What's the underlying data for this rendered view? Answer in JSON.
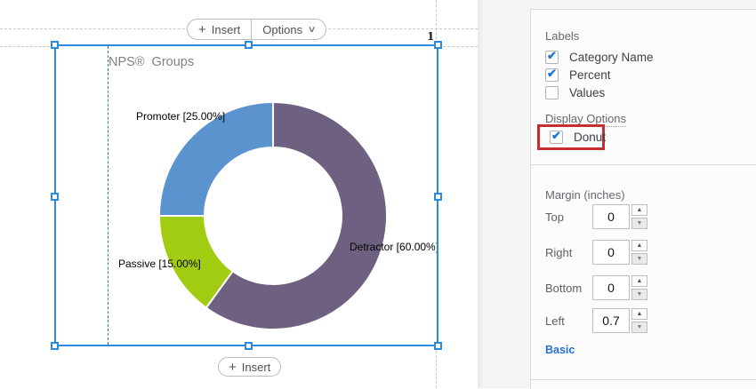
{
  "page": {
    "number": "1"
  },
  "toolbar": {
    "insert_label": "Insert",
    "options_label": "Options"
  },
  "bottom_toolbar": {
    "insert_label": "Insert"
  },
  "chart_data": {
    "type": "pie",
    "donut": true,
    "title": "NPS®  Groups",
    "categories": [
      "Detractor",
      "Passive",
      "Promoter"
    ],
    "values": [
      60,
      15,
      25
    ],
    "labels": [
      "Detractor [60.00%]",
      "Passive [15.00%]",
      "Promoter [25.00%]"
    ],
    "colors": [
      "#6e6080",
      "#a2cc12",
      "#5b93ce"
    ],
    "start_angle_deg": 0,
    "direction": "clockwise",
    "legend": "off"
  },
  "panel": {
    "labels_section": {
      "title": "Labels",
      "options": [
        {
          "label": "Category Name",
          "checked": true
        },
        {
          "label": "Percent",
          "checked": true
        },
        {
          "label": "Values",
          "checked": false
        }
      ]
    },
    "display_section": {
      "title": "Display Options",
      "options": [
        {
          "label": "Donut",
          "checked": true,
          "highlighted": true
        }
      ],
      "highlight_color": "#c5302e"
    },
    "margin_section": {
      "title": "Margin (inches)",
      "fields": [
        {
          "label": "Top",
          "value": "0"
        },
        {
          "label": "Right",
          "value": "0"
        },
        {
          "label": "Bottom",
          "value": "0"
        },
        {
          "label": "Left",
          "value": "0.7"
        }
      ],
      "link": "Basic"
    }
  },
  "colors": {
    "selection": "#2b8ae2",
    "margin_guide": "#2a7cb4",
    "highlight": "#c5302e"
  }
}
